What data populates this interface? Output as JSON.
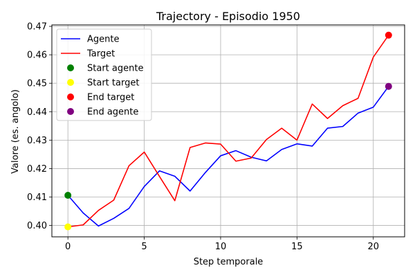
{
  "chart_data": {
    "type": "line",
    "title": "Trajectory - Episodio 1950",
    "xlabel": "Step temporale",
    "ylabel": "Valore (es. angolo)",
    "xlim": [
      -1.05,
      22.05
    ],
    "ylim": [
      0.396,
      0.4705
    ],
    "xticks": [
      0,
      5,
      10,
      15,
      20
    ],
    "xtick_labels": [
      "0",
      "5",
      "10",
      "15",
      "20"
    ],
    "yticks": [
      0.4,
      0.41,
      0.42,
      0.43,
      0.44,
      0.45,
      0.46,
      0.47
    ],
    "ytick_labels": [
      "0.40",
      "0.41",
      "0.42",
      "0.43",
      "0.44",
      "0.45",
      "0.46",
      "0.47"
    ],
    "grid": true,
    "legend_position": "top-left",
    "x": [
      0,
      1,
      2,
      3,
      4,
      5,
      6,
      7,
      8,
      9,
      10,
      11,
      12,
      13,
      14,
      15,
      16,
      17,
      18,
      19,
      20,
      21
    ],
    "series": [
      {
        "name": "Agente",
        "color": "#0000ff",
        "values": [
          0.4106,
          0.4044,
          0.3998,
          0.4025,
          0.406,
          0.4137,
          0.4192,
          0.4173,
          0.4121,
          0.4186,
          0.4245,
          0.4263,
          0.424,
          0.4227,
          0.4267,
          0.4287,
          0.4279,
          0.4342,
          0.4348,
          0.4395,
          0.4416,
          0.4489
        ]
      },
      {
        "name": "Target",
        "color": "#ff0000",
        "values": [
          0.3995,
          0.4002,
          0.4053,
          0.4089,
          0.421,
          0.4258,
          0.4172,
          0.4087,
          0.4274,
          0.429,
          0.4286,
          0.4226,
          0.4237,
          0.4302,
          0.4342,
          0.43,
          0.4427,
          0.4376,
          0.4421,
          0.4447,
          0.4592,
          0.4669
        ]
      }
    ],
    "markers": [
      {
        "name": "Start agente",
        "color": "#008000",
        "x": 0,
        "y": 0.4106
      },
      {
        "name": "Start target",
        "color": "#ffff00",
        "x": 0,
        "y": 0.3995
      },
      {
        "name": "End target",
        "color": "#ff0000",
        "x": 21,
        "y": 0.4669
      },
      {
        "name": "End agente",
        "color": "#800080",
        "x": 21,
        "y": 0.4489
      }
    ]
  }
}
